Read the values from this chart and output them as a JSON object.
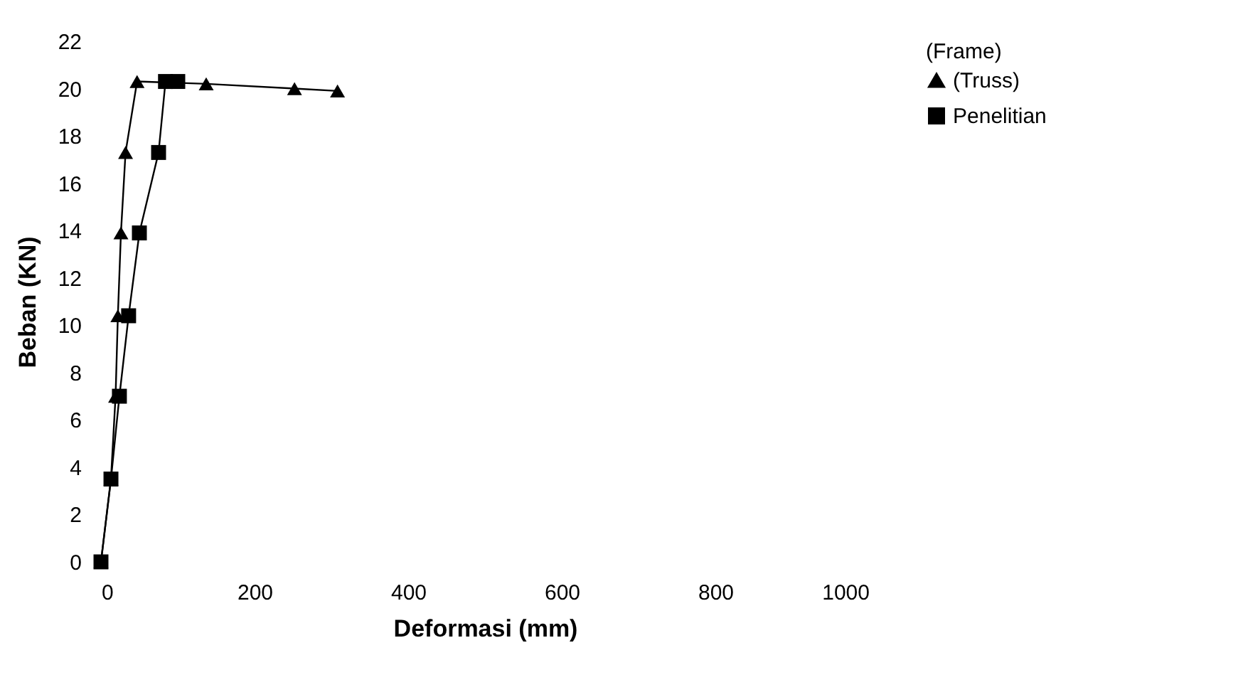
{
  "chart_data": {
    "type": "line",
    "xlabel": "Deformasi (mm)",
    "ylabel": "Beban (KN)",
    "legend_title": "(Frame)",
    "legend": "right",
    "xlim": [
      0,
      1000
    ],
    "xticks": [
      0,
      200,
      400,
      600,
      800,
      1000
    ],
    "ylim": [
      0,
      22
    ],
    "yticks": [
      0,
      2,
      4,
      6,
      8,
      10,
      12,
      14,
      16,
      18,
      20,
      22
    ],
    "grid": false,
    "line_style": "solid",
    "series": [
      {
        "name": "(Truss)",
        "color": "#000000",
        "marker": "triangle",
        "x": [
          0,
          13,
          19,
          22,
          26,
          32,
          47,
          137,
          252,
          308
        ],
        "values": [
          0,
          3.5,
          7.0,
          10.4,
          13.9,
          17.3,
          20.3,
          20.2,
          20.0,
          19.9
        ]
      },
      {
        "name": "Penelitian",
        "color": "#000000",
        "marker": "square",
        "x": [
          0,
          13,
          24,
          36,
          50,
          75,
          84,
          100
        ],
        "values": [
          0,
          3.5,
          7.0,
          10.4,
          13.9,
          17.3,
          20.3,
          20.3
        ]
      }
    ]
  }
}
